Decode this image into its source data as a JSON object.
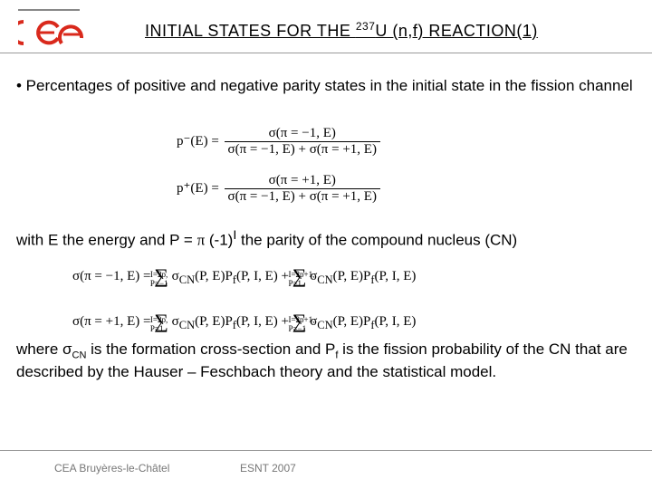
{
  "header": {
    "title_html": "INITIAL STATES FOR THE <sup>237</sup>U (n,f) REACTION(1)"
  },
  "bullet": {
    "text": "• Percentages of positive and negative parity states in the initial state in the fission channel"
  },
  "eq": {
    "p_minus_lhs": "p⁻(E) =",
    "p_plus_lhs": "p⁺(E) =",
    "num_minus": "σ(π = −1, E)",
    "num_plus": "σ(π = +1, E)",
    "den": "σ(π = −1, E) + σ(π = +1, E)"
  },
  "withE": {
    "html": "with E the energy and P = <span class='serif'>π</span> (-1)<sup>I</sup> the parity of the compound nucleus (CN)"
  },
  "sigma": {
    "line1": "σ(π = −1, E) = ∑ σ<sub>CN</sub>(P, E)P<sub>f</sub>(P, I, E) + ∑ σ<sub>CN</sub>(P, E)P<sub>f</sub>(P, I, E)",
    "sub1a": "I=2p, P=−1",
    "sub1b": "I=2p+1, P=1",
    "line2": "σ(π = +1, E) = ∑ σ<sub>CN</sub>(P, E)P<sub>f</sub>(P, I, E) + ∑ σ<sub>CN</sub>(P, E)P<sub>f</sub>(P, I, E)",
    "sub2a": "I=2p, P=1",
    "sub2b": "I=2p+1, P=−1"
  },
  "where": {
    "html": "where σ<sub>CN</sub> is the formation cross-section and P<sub>f</sub> is the fission probability of the CN that are described by the Hauser – Feschbach theory and the statistical model."
  },
  "footer": {
    "left": "CEA Bruyères-le-Châtel",
    "right": "ESNT 2007"
  },
  "colors": {
    "logo_red": "#d9291c",
    "rule_gray": "#999999",
    "footer_text": "#777777"
  }
}
